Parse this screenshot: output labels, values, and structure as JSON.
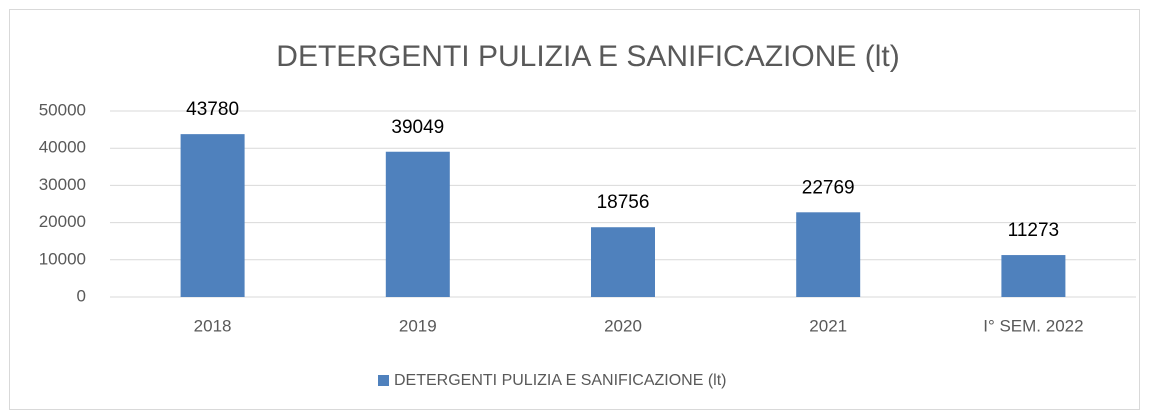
{
  "chart_data": {
    "type": "bar",
    "title": "DETERGENTI PULIZIA E SANIFICAZIONE (lt)",
    "categories": [
      "2018",
      "2019",
      "2020",
      "2021",
      "I° SEM. 2022"
    ],
    "series": [
      {
        "name": "DETERGENTI PULIZIA E SANIFICAZIONE (lt)",
        "color": "#4f81bd",
        "values": [
          43780,
          39049,
          18756,
          22769,
          11273
        ]
      }
    ],
    "ylim": [
      0,
      50000
    ],
    "yticks": [
      0,
      10000,
      20000,
      30000,
      40000,
      50000
    ],
    "grid": true,
    "legend": "bottom"
  }
}
